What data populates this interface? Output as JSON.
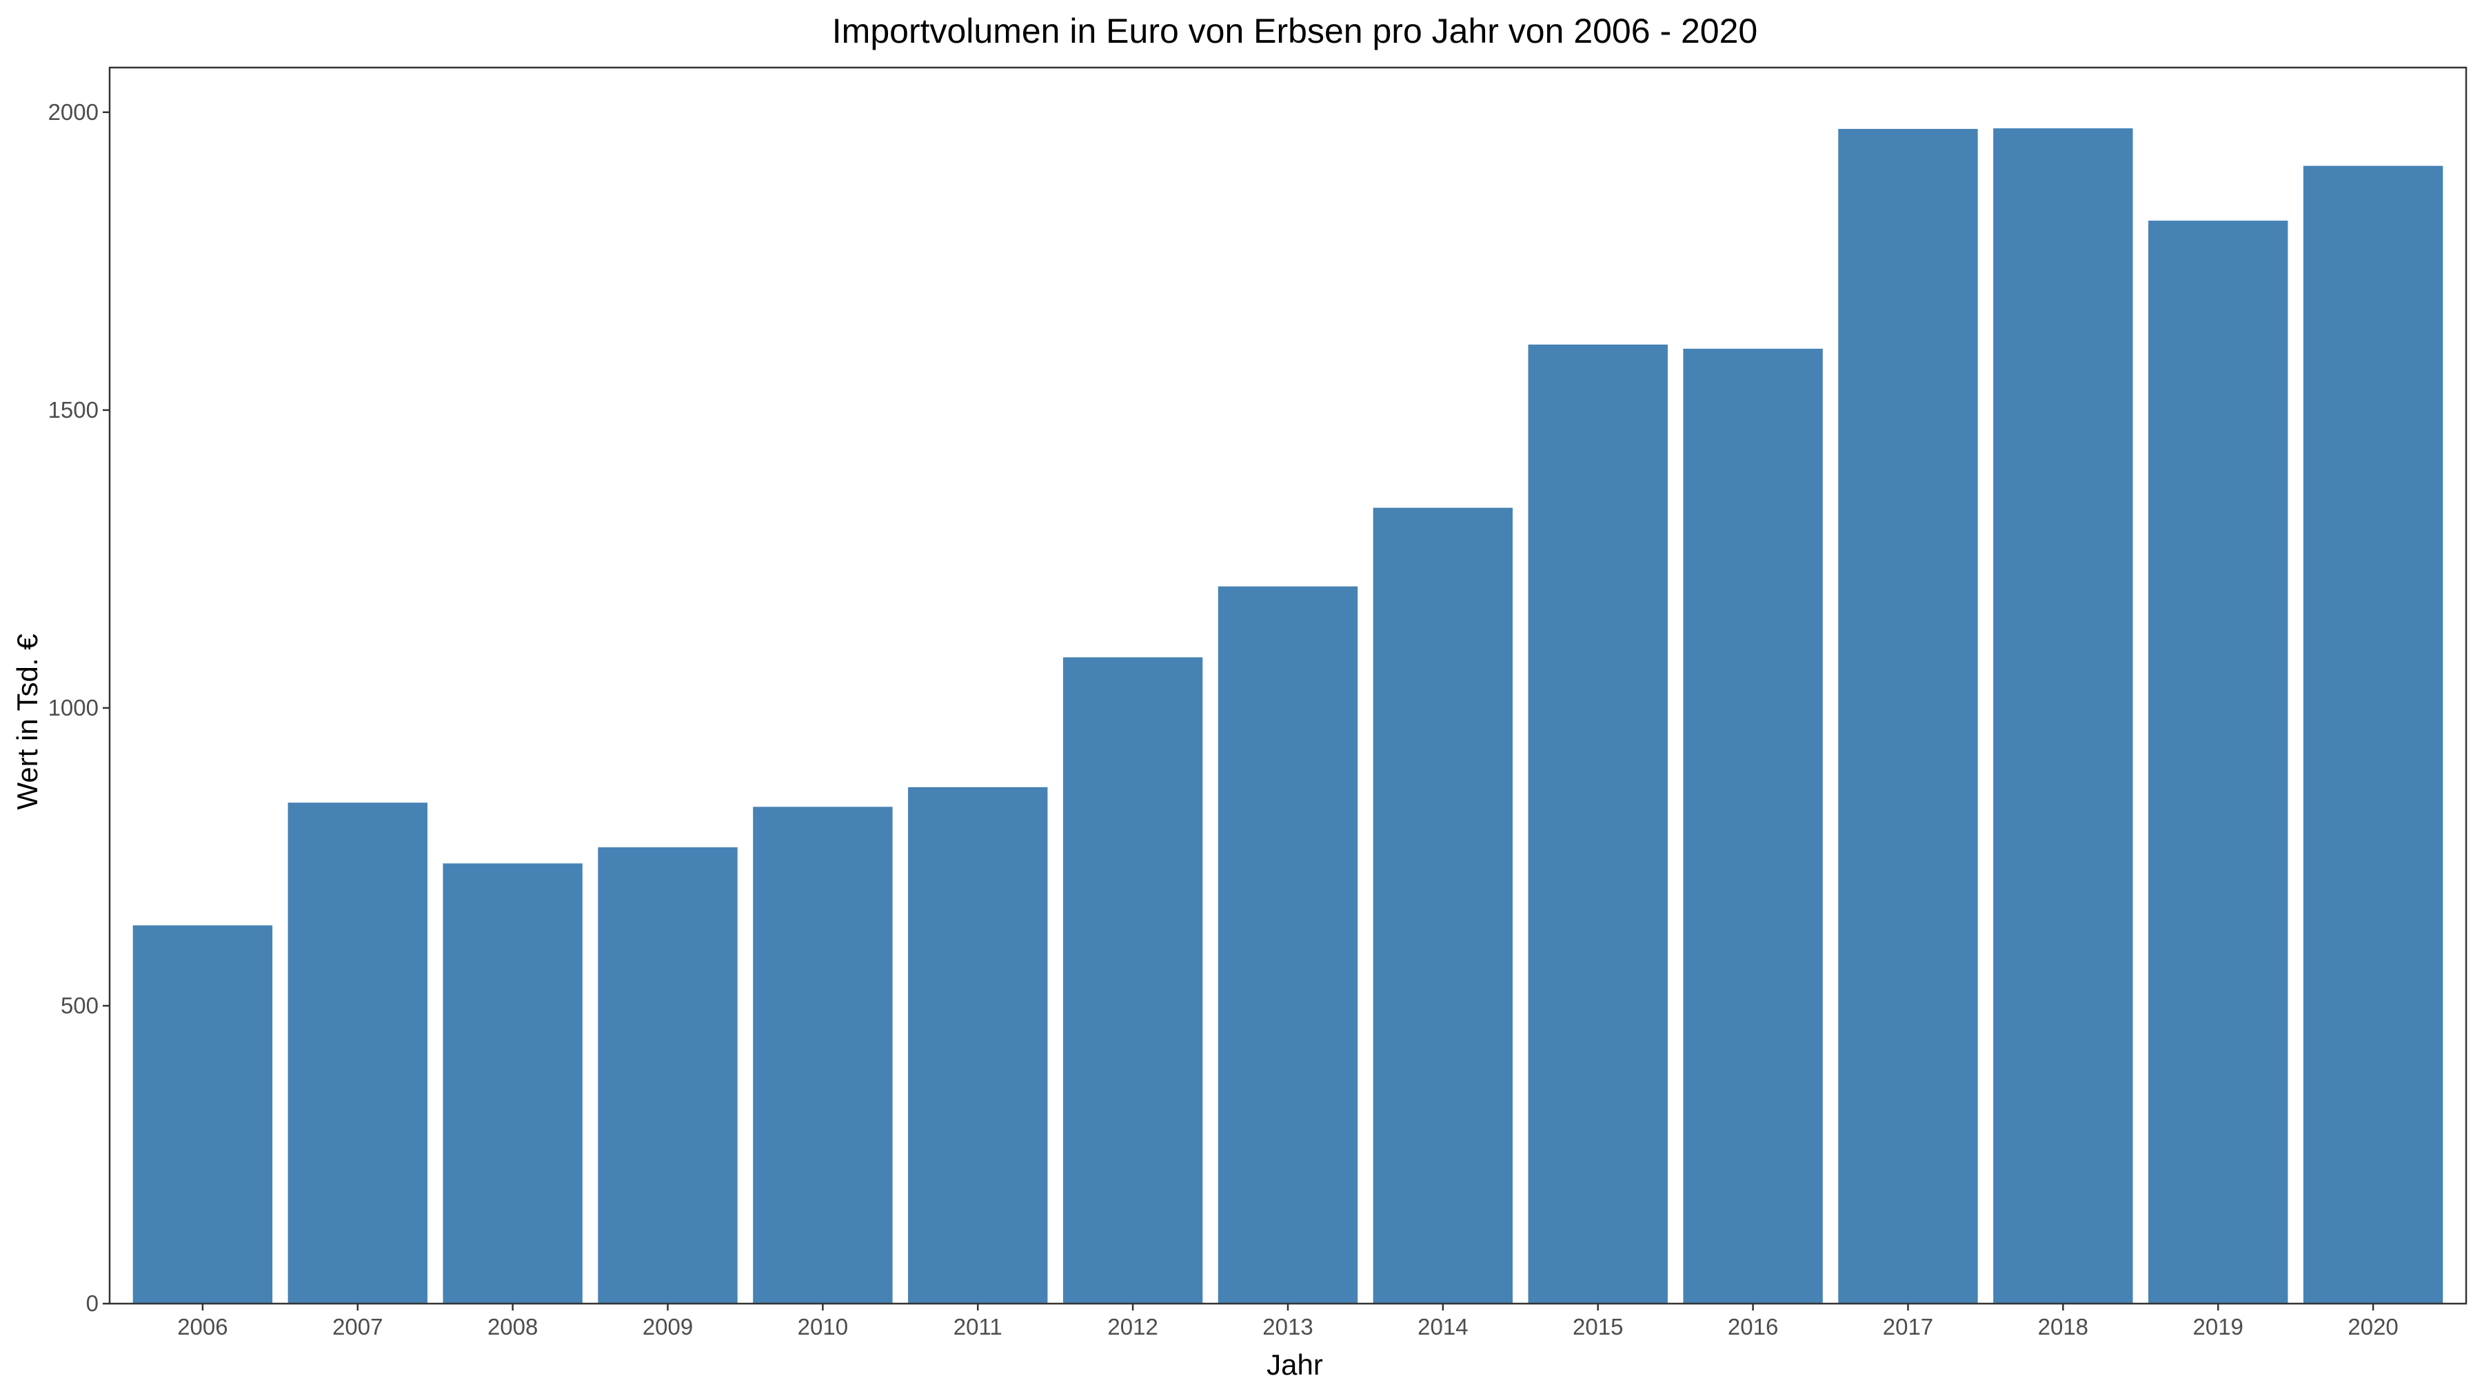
{
  "chart_data": {
    "type": "bar",
    "title": "Importvolumen in Euro von Erbsen pro Jahr von 2006 - 2020",
    "xlabel": "Jahr",
    "ylabel": "Wert in Tsd. €",
    "categories": [
      "2006",
      "2007",
      "2008",
      "2009",
      "2010",
      "2011",
      "2012",
      "2013",
      "2014",
      "2015",
      "2016",
      "2017",
      "2018",
      "2019",
      "2020"
    ],
    "values": [
      635,
      841,
      739,
      766,
      834,
      867,
      1085,
      1204,
      1336,
      1610,
      1603,
      1972,
      1973,
      1818,
      1910
    ],
    "ylim": [
      0,
      2075
    ],
    "yticks": [
      0,
      500,
      1000,
      1500,
      2000
    ],
    "bar_color": "#4682B4",
    "grid": false,
    "legend": "none"
  }
}
